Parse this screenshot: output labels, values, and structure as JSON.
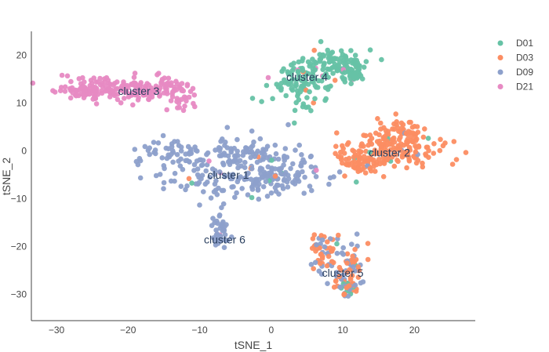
{
  "chart_data": {
    "type": "scatter",
    "xlabel": "tSNE_1",
    "ylabel": "tSNE_2",
    "xlim": [
      -33.5,
      28.5
    ],
    "ylim": [
      -35.5,
      25
    ],
    "xticks": [
      -30,
      -20,
      -10,
      0,
      10,
      20
    ],
    "yticks": [
      -30,
      -20,
      -10,
      0,
      10,
      20
    ],
    "grid": false,
    "legend_position": "top-right",
    "series": [
      {
        "name": "D01",
        "color": "#66c2a5"
      },
      {
        "name": "D03",
        "color": "#fc8d62"
      },
      {
        "name": "D09",
        "color": "#8da0cb"
      },
      {
        "name": "D21",
        "color": "#e78ac3"
      }
    ],
    "clusters": [
      {
        "label": "cluster 1",
        "x": -6,
        "y": -5,
        "series_mix": [
          0.02,
          0.01,
          0.96,
          0.01
        ],
        "n": 330,
        "blobs": [
          {
            "cx": -5,
            "cy": -5,
            "sx": 5.5,
            "sy": 2.6,
            "w": 0.55
          },
          {
            "cx": 1,
            "cy": -3.5,
            "sx": 2.4,
            "sy": 3.0,
            "w": 0.2
          },
          {
            "cx": -14,
            "cy": -0.5,
            "sx": 2.0,
            "sy": 1.4,
            "w": 0.12
          },
          {
            "cx": -5,
            "cy": 0,
            "sx": 2.5,
            "sy": 1.2,
            "w": 0.13
          }
        ]
      },
      {
        "label": "cluster 2",
        "x": 16.5,
        "y": -0.3,
        "series_mix": [
          0.01,
          0.97,
          0.02,
          0.0
        ],
        "n": 260,
        "blobs": [
          {
            "cx": 17,
            "cy": 0,
            "sx": 4.0,
            "sy": 1.9,
            "w": 0.65
          },
          {
            "cx": 18,
            "cy": 4.5,
            "sx": 1.5,
            "sy": 1.2,
            "w": 0.15
          },
          {
            "cx": 12.5,
            "cy": -2.5,
            "sx": 1.3,
            "sy": 1.3,
            "w": 0.2
          }
        ]
      },
      {
        "label": "cluster 3",
        "x": -18.5,
        "y": 12.5,
        "series_mix": [
          0.0,
          0.0,
          0.0,
          1.0
        ],
        "n": 240,
        "blobs": [
          {
            "cx": -20,
            "cy": 13,
            "sx": 4.0,
            "sy": 1.3,
            "w": 0.7
          },
          {
            "cx": -27,
            "cy": 12.5,
            "sx": 1.5,
            "sy": 0.7,
            "w": 0.15
          },
          {
            "cx": -13,
            "cy": 11.5,
            "sx": 1.4,
            "sy": 1.8,
            "w": 0.15
          }
        ]
      },
      {
        "label": "cluster 4",
        "x": 5,
        "y": 15.5,
        "series_mix": [
          0.98,
          0.01,
          0.0,
          0.01
        ],
        "n": 230,
        "blobs": [
          {
            "cx": 4,
            "cy": 14,
            "sx": 2.2,
            "sy": 2.6,
            "w": 0.45
          },
          {
            "cx": 8.5,
            "cy": 19,
            "sx": 2.2,
            "sy": 1.3,
            "w": 0.35
          },
          {
            "cx": 11,
            "cy": 16.5,
            "sx": 0.9,
            "sy": 1.1,
            "w": 0.2
          }
        ]
      },
      {
        "label": "cluster 5",
        "x": 10,
        "y": -25.5,
        "series_mix": [
          0.06,
          0.48,
          0.46,
          0.0
        ],
        "n": 140,
        "blobs": [
          {
            "cx": 7.5,
            "cy": -21,
            "sx": 1.0,
            "sy": 1.8,
            "w": 0.35
          },
          {
            "cx": 11,
            "cy": -24.5,
            "sx": 1.0,
            "sy": 2.5,
            "w": 0.4
          },
          {
            "cx": 10.5,
            "cy": -29,
            "sx": 1.0,
            "sy": 1.2,
            "w": 0.25
          }
        ]
      },
      {
        "label": "cluster 6",
        "x": -6.5,
        "y": -18.5,
        "series_mix": [
          0.0,
          0.0,
          0.97,
          0.03
        ],
        "n": 40,
        "blobs": [
          {
            "cx": -7,
            "cy": -17,
            "sx": 0.7,
            "sy": 2.0,
            "w": 1.0
          }
        ]
      }
    ]
  }
}
